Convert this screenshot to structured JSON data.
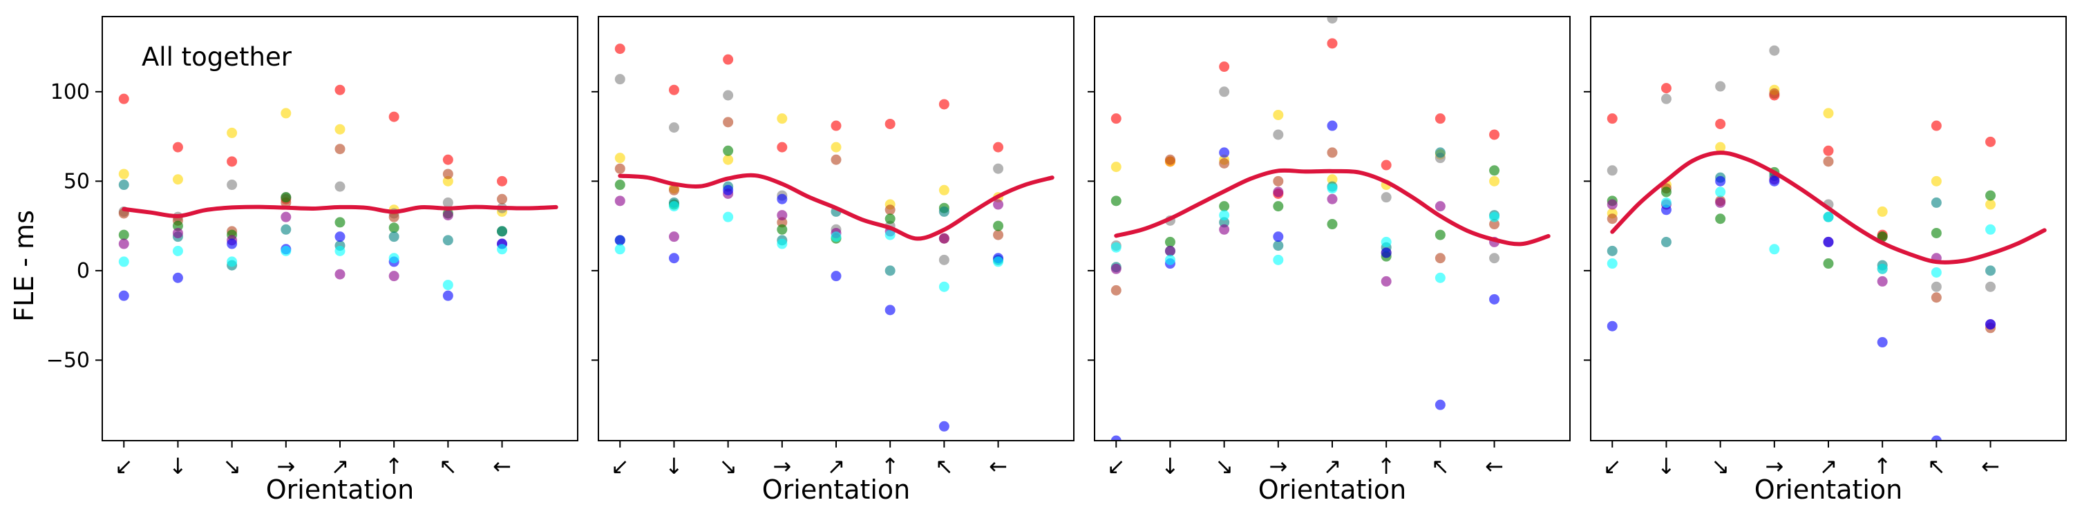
{
  "figure": {
    "ylabel": "FLE - ms",
    "xlabel": "Orientation"
  },
  "chart_data": {
    "type": "scatter",
    "ylim": [
      -95,
      142
    ],
    "yticks": [
      -50,
      0,
      50,
      100
    ],
    "ytick_labels": [
      "−50",
      "0",
      "50",
      "100"
    ],
    "xticks": [
      0,
      1,
      2,
      3,
      4,
      5,
      6,
      7
    ],
    "xlim": [
      -0.4,
      8.4
    ],
    "orientation_symbols": [
      "↙",
      "↓",
      "↘",
      "→",
      "↗",
      "↑",
      "↖",
      "←"
    ],
    "series_colors": {
      "red": "#ff0000",
      "gold": "#ffd700",
      "gray": "#808080",
      "sienna": "#b5451e",
      "green": "#008000",
      "teal": "#008080",
      "purple": "#8b008b",
      "blue": "#0000ff",
      "cyan": "#00ffff"
    },
    "fit_color": "#dc143c",
    "panels": [
      {
        "annotation": "All together",
        "points": {
          "red": [
            96,
            69,
            61,
            40,
            101,
            86,
            62,
            50
          ],
          "gold": [
            54,
            51,
            77,
            88,
            79,
            34,
            50,
            33
          ],
          "gray": [
            33,
            30,
            48,
            41,
            47,
            32,
            38,
            35
          ],
          "sienna": [
            32,
            28,
            22,
            38,
            68,
            30,
            54,
            40
          ],
          "green": [
            20,
            25,
            20,
            41,
            27,
            24,
            32,
            22
          ],
          "teal": [
            48,
            19,
            3,
            23,
            14,
            19,
            17,
            22
          ],
          "purple": [
            15,
            21,
            17,
            30,
            -2,
            -3,
            31,
            15
          ],
          "blue": [
            -14,
            -4,
            15,
            12,
            19,
            5,
            -14,
            15
          ],
          "cyan": [
            5,
            11,
            5,
            11,
            11,
            7,
            -8,
            12
          ]
        },
        "fit": [
          34.4,
          32.5,
          30.5,
          33.8,
          35.3,
          35.6,
          35.2,
          34.7,
          35.5,
          35.1,
          32.9,
          35.4,
          34.8,
          35.6,
          35.1,
          34.9,
          35.5
        ]
      },
      {
        "annotation": "",
        "points": {
          "red": [
            124,
            101,
            118,
            69,
            81,
            82,
            93,
            69
          ],
          "gold": [
            63,
            46,
            62,
            85,
            69,
            37,
            45,
            41
          ],
          "gray": [
            107,
            80,
            98,
            42,
            23,
            25,
            6,
            57
          ],
          "sienna": [
            57,
            45,
            83,
            27,
            62,
            34,
            18,
            20
          ],
          "green": [
            48,
            37,
            67,
            23,
            18,
            29,
            35,
            25
          ],
          "teal": [
            17,
            38,
            47,
            17,
            33,
            0,
            33,
            6
          ],
          "purple": [
            39,
            19,
            43,
            31,
            21,
            22,
            18,
            37
          ],
          "blue": [
            17,
            7,
            45,
            40,
            -3,
            -22,
            -87,
            7
          ],
          "cyan": [
            12,
            36,
            30,
            15,
            19,
            20,
            -9,
            5
          ]
        },
        "fit": [
          53.0,
          52.1,
          48.4,
          47.2,
          51.5,
          53.2,
          48.5,
          41.1,
          35.0,
          28.3,
          23.9,
          17.9,
          22.9,
          32.4,
          41.5,
          48.0,
          52.0
        ]
      },
      {
        "annotation": "",
        "points": {
          "red": [
            85,
            61,
            114,
            43,
            127,
            59,
            85,
            76
          ],
          "gold": [
            58,
            61,
            62,
            87,
            51,
            48,
            65,
            50
          ],
          "gray": [
            14,
            28,
            100,
            76,
            141,
            41,
            63,
            7
          ],
          "sienna": [
            -11,
            62,
            60,
            50,
            66,
            10,
            7,
            26
          ],
          "green": [
            39,
            16,
            36,
            36,
            26,
            8,
            20,
            56
          ],
          "teal": [
            2,
            11,
            27,
            14,
            47,
            13,
            66,
            31
          ],
          "purple": [
            1,
            11,
            23,
            44,
            40,
            -6,
            36,
            16
          ],
          "blue": [
            -95,
            4,
            66,
            19,
            81,
            10,
            -75,
            -16
          ],
          "cyan": [
            13,
            6,
            31,
            6,
            46,
            16,
            -4,
            30
          ]
        },
        "fit": [
          19.5,
          23.1,
          29.1,
          36.7,
          44.3,
          51.5,
          55.8,
          55.4,
          55.6,
          54.9,
          49.6,
          40.7,
          30.5,
          22.3,
          17.3,
          14.9,
          19.3
        ]
      },
      {
        "annotation": "",
        "points": {
          "red": [
            85,
            102,
            82,
            98,
            67,
            20,
            81,
            72
          ],
          "gold": [
            32,
            48,
            69,
            101,
            88,
            33,
            50,
            37
          ],
          "gray": [
            56,
            96,
            103,
            123,
            37,
            1,
            -9,
            -9
          ],
          "sienna": [
            29,
            46,
            39,
            99,
            61,
            19,
            -15,
            -32
          ],
          "green": [
            39,
            44,
            29,
            55,
            4,
            19,
            21,
            42
          ],
          "teal": [
            11,
            16,
            52,
            53,
            30,
            3,
            38,
            0
          ],
          "purple": [
            37,
            37,
            38,
            51,
            16,
            -6,
            7,
            -30
          ],
          "blue": [
            -31,
            34,
            50,
            50,
            16,
            -40,
            -95,
            -30
          ],
          "cyan": [
            4,
            38,
            44,
            12,
            30,
            1,
            -1,
            23
          ]
        },
        "fit": [
          21.7,
          37.6,
          50.4,
          61.6,
          65.9,
          62.2,
          54.8,
          45.4,
          34.9,
          24.4,
          15.5,
          9.3,
          4.9,
          5.5,
          9.5,
          15.1,
          22.6
        ]
      }
    ]
  }
}
